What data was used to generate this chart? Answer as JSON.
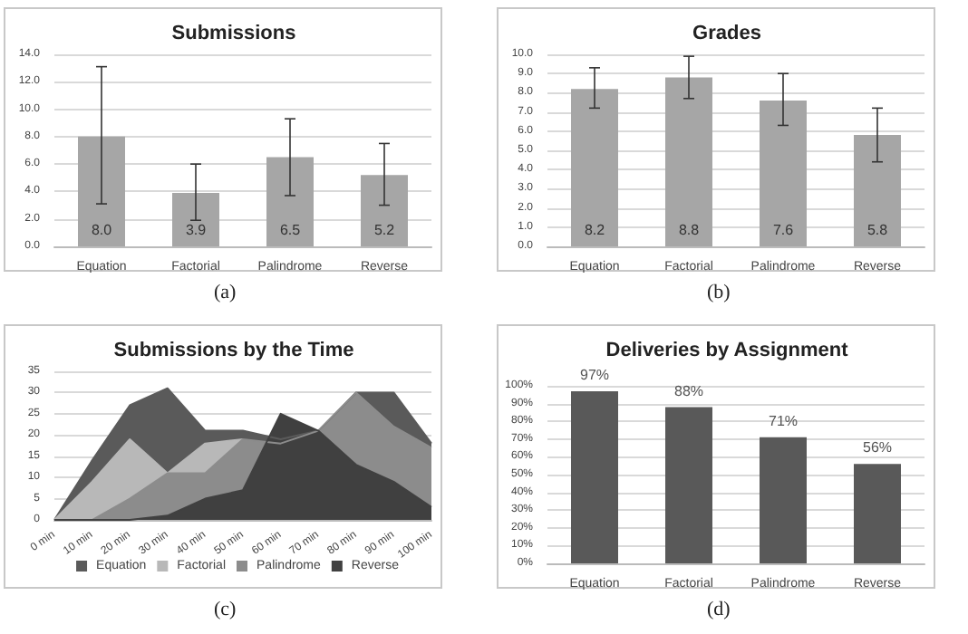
{
  "chart_data": [
    {
      "type": "bar",
      "title": "Submissions",
      "categories": [
        "Equation",
        "Factorial",
        "Palindrome",
        "Reverse"
      ],
      "values": [
        8.0,
        3.9,
        6.5,
        5.2
      ],
      "color": "#a6a6a6",
      "errors": [
        [
          3.1,
          13.1
        ],
        [
          1.9,
          6.0
        ],
        [
          3.7,
          9.3
        ],
        [
          3.0,
          7.5
        ]
      ],
      "data_labels": true,
      "value_labels": [
        "8.0",
        "3.9",
        "6.5",
        "5.2"
      ],
      "ylim": [
        0,
        14
      ],
      "yticks": [
        {
          "value": 0,
          "label": "0.0"
        },
        {
          "value": 2,
          "label": "2.0"
        },
        {
          "value": 4,
          "label": "4.0"
        },
        {
          "value": 6,
          "label": "6.0"
        },
        {
          "value": 8,
          "label": "8.0"
        },
        {
          "value": 10,
          "label": "10.0"
        },
        {
          "value": 12,
          "label": "12.0"
        },
        {
          "value": 14,
          "label": "14.0"
        }
      ],
      "grid": "y",
      "annotations": [
        "(a)"
      ]
    },
    {
      "type": "bar",
      "title": "Grades",
      "categories": [
        "Equation",
        "Factorial",
        "Palindrome",
        "Reverse"
      ],
      "values": [
        8.2,
        8.8,
        7.6,
        5.8
      ],
      "color": "#a6a6a6",
      "errors": [
        [
          7.2,
          9.3
        ],
        [
          7.7,
          9.9
        ],
        [
          6.3,
          9.0
        ],
        [
          4.4,
          7.2
        ]
      ],
      "data_labels": true,
      "ylim": [
        0,
        10
      ],
      "yticks": [
        {
          "value": 0,
          "label": "0.0"
        },
        {
          "value": 1,
          "label": "1.0"
        },
        {
          "value": 2,
          "label": "2.0"
        },
        {
          "value": 3,
          "label": "3.0"
        },
        {
          "value": 4,
          "label": "4.0"
        },
        {
          "value": 5,
          "label": "5.0"
        },
        {
          "value": 6,
          "label": "6.0"
        },
        {
          "value": 7,
          "label": "7.0"
        },
        {
          "value": 8,
          "label": "8.0"
        },
        {
          "value": 9,
          "label": "9.0"
        },
        {
          "value": 10,
          "label": "10.0"
        }
      ],
      "grid": "y",
      "annotations": [
        "(b)"
      ]
    },
    {
      "type": "area",
      "title": "Submissions by the Time",
      "categories": [
        "0 min",
        "10 min",
        "20 min",
        "30 min",
        "40 min",
        "50 min",
        "60 min",
        "70 min",
        "80 min",
        "90 min",
        "100 min"
      ],
      "series": [
        {
          "name": "Equation",
          "color": "#5a5a5a",
          "values": [
            0,
            14,
            27,
            31,
            21,
            21,
            19,
            21,
            30,
            30,
            18
          ]
        },
        {
          "name": "Factorial",
          "color": "#b8b8b8",
          "values": [
            0,
            9,
            19,
            11,
            18,
            19,
            null,
            null,
            null,
            null,
            null
          ]
        },
        {
          "name": "Palindrome",
          "color": "#8c8c8c",
          "values": [
            0,
            0,
            5,
            11,
            11,
            19,
            18,
            21,
            30,
            22,
            17
          ]
        },
        {
          "name": "Reverse",
          "color": "#404040",
          "values": [
            0,
            0,
            0,
            1,
            5,
            7,
            25,
            21,
            13,
            9,
            3
          ]
        }
      ],
      "ylim": [
        0,
        35
      ],
      "yticks": [
        0,
        5,
        10,
        15,
        20,
        25,
        30,
        35
      ],
      "grid": "y",
      "legend": "bottom",
      "annotations": [
        "(c)"
      ]
    },
    {
      "type": "bar",
      "title": "Deliveries by Assignment",
      "categories": [
        "Equation",
        "Factorial",
        "Palindrome",
        "Reverse"
      ],
      "values": [
        97,
        88,
        71,
        56
      ],
      "value_labels": [
        "97%",
        "88%",
        "71%",
        "56%"
      ],
      "color": "#595959",
      "ylim": [
        0,
        100
      ],
      "yticks": [
        {
          "value": 0,
          "label": "0%"
        },
        {
          "value": 10,
          "label": "10%"
        },
        {
          "value": 20,
          "label": "20%"
        },
        {
          "value": 30,
          "label": "30%"
        },
        {
          "value": 40,
          "label": "40%"
        },
        {
          "value": 50,
          "label": "50%"
        },
        {
          "value": 60,
          "label": "60%"
        },
        {
          "value": 70,
          "label": "70%"
        },
        {
          "value": 80,
          "label": "80%"
        },
        {
          "value": 90,
          "label": "90%"
        },
        {
          "value": 100,
          "label": "100%"
        }
      ],
      "grid": "y",
      "annotations": [
        "(d)"
      ]
    }
  ]
}
